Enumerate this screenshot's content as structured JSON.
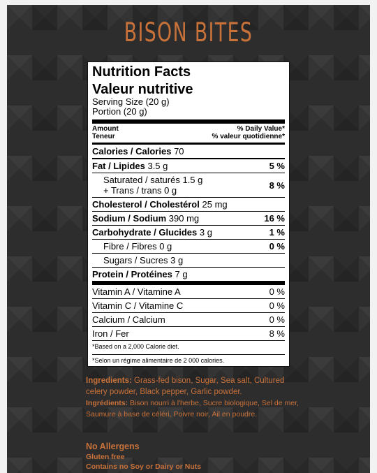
{
  "brand": "BISON BITES",
  "label": {
    "title_en": "Nutrition Facts",
    "title_fr": "Valeur nutritive",
    "serving_en": "Serving Size (20 g)",
    "serving_fr": "Portion (20 g)",
    "amount_en": "Amount",
    "amount_fr": "Teneur",
    "dv_en": "% Daily Value*",
    "dv_fr": "% valeur quotidienne*",
    "calories_label": "Calories / Calories",
    "calories_value": "70",
    "fat_label": "Fat / Lipides",
    "fat_value": "3.5 g",
    "fat_pct": "5 %",
    "sat_label": "Saturated / saturés",
    "sat_value": "1.5 g",
    "trans_label": "+ Trans / trans",
    "trans_value": "0 g",
    "sat_trans_pct": "8 %",
    "chol_label": "Cholesterol / Cholestérol",
    "chol_value": "25 mg",
    "sodium_label": "Sodium / Sodium",
    "sodium_value": "390 mg",
    "sodium_pct": "16 %",
    "carb_label": "Carbohydrate / Glucides",
    "carb_value": "3 g",
    "carb_pct": "1 %",
    "fibre_label": "Fibre / Fibres",
    "fibre_value": "0 g",
    "fibre_pct": "0 %",
    "sugars_label": "Sugars / Sucres",
    "sugars_value": "3 g",
    "protein_label": "Protein / Protéines",
    "protein_value": "7 g",
    "vitamins": [
      {
        "label": "Vitamin A / Vitamine A",
        "pct": "0 %"
      },
      {
        "label": "Vitamin C / Vitamine C",
        "pct": "0 %"
      },
      {
        "label": "Calcium / Calcium",
        "pct": "0 %"
      },
      {
        "label": "Iron / Fer",
        "pct": "8 %"
      }
    ],
    "note_en": "*Based on a 2,000 Calorie diet.",
    "note_fr": "*Selon un régime alimentaire de 2 000 calories."
  },
  "ingredients": {
    "en_title": "Ingredients:",
    "en_text": "Grass-fed bison, Sugar, Sea salt, Cultured celery powder, Black pepper, Garlic powder.",
    "fr_title": "Ingrédients:",
    "fr_text": "Bison nourri à l'herbe, Sucre biologique, Sel de mer, Saumure à base de céléri, Poivre noir, Ail en poudre."
  },
  "allergens": {
    "title": "No Allergens",
    "line1": "Gluten free",
    "line2": "Contains no Soy or Dairy or Nuts"
  },
  "colors": {
    "accent": "#c8723a",
    "background": "#2e2d2e"
  }
}
